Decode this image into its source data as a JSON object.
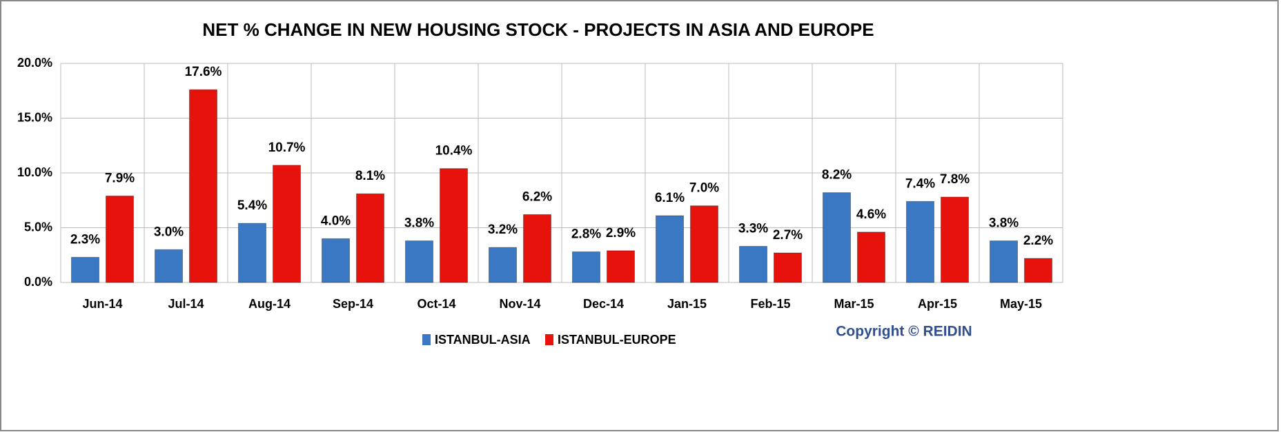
{
  "chart_data": {
    "type": "bar",
    "title": "NET % CHANGE IN NEW HOUSING STOCK - PROJECTS IN ASIA AND EUROPE",
    "categories": [
      "Jun-14",
      "Jul-14",
      "Aug-14",
      "Sep-14",
      "Oct-14",
      "Nov-14",
      "Dec-14",
      "Jan-15",
      "Feb-15",
      "Mar-15",
      "Apr-15",
      "May-15"
    ],
    "series": [
      {
        "name": "ISTANBUL-ASIA",
        "color": "#3a78c3",
        "values": [
          2.3,
          3.0,
          5.4,
          4.0,
          3.8,
          3.2,
          2.8,
          6.1,
          3.3,
          8.2,
          7.4,
          3.8
        ],
        "value_labels": [
          "2.3%",
          "3.0%",
          "5.4%",
          "4.0%",
          "3.8%",
          "3.2%",
          "2.8%",
          "6.1%",
          "3.3%",
          "8.2%",
          "7.4%",
          "3.8%"
        ]
      },
      {
        "name": "ISTANBUL-EUROPE",
        "color": "#e8120c",
        "values": [
          7.9,
          17.6,
          10.7,
          8.1,
          10.4,
          6.2,
          2.9,
          7.0,
          2.7,
          4.6,
          7.8,
          2.2
        ],
        "value_labels": [
          "7.9%",
          "17.6%",
          "10.7%",
          "8.1%",
          "10.4%",
          "6.2%",
          "2.9%",
          "7.0%",
          "2.7%",
          "4.6%",
          "7.8%",
          "2.2%"
        ]
      }
    ],
    "ylim": [
      0,
      20
    ],
    "yticks": [
      {
        "value": 0,
        "label": "0.0%"
      },
      {
        "value": 5,
        "label": "5.0%"
      },
      {
        "value": 10,
        "label": "10.0%"
      },
      {
        "value": 15,
        "label": "15.0%"
      },
      {
        "value": 20,
        "label": "20.0%"
      }
    ],
    "grid": true,
    "legend": "bottom",
    "annotation": "Copyright © REIDIN"
  }
}
